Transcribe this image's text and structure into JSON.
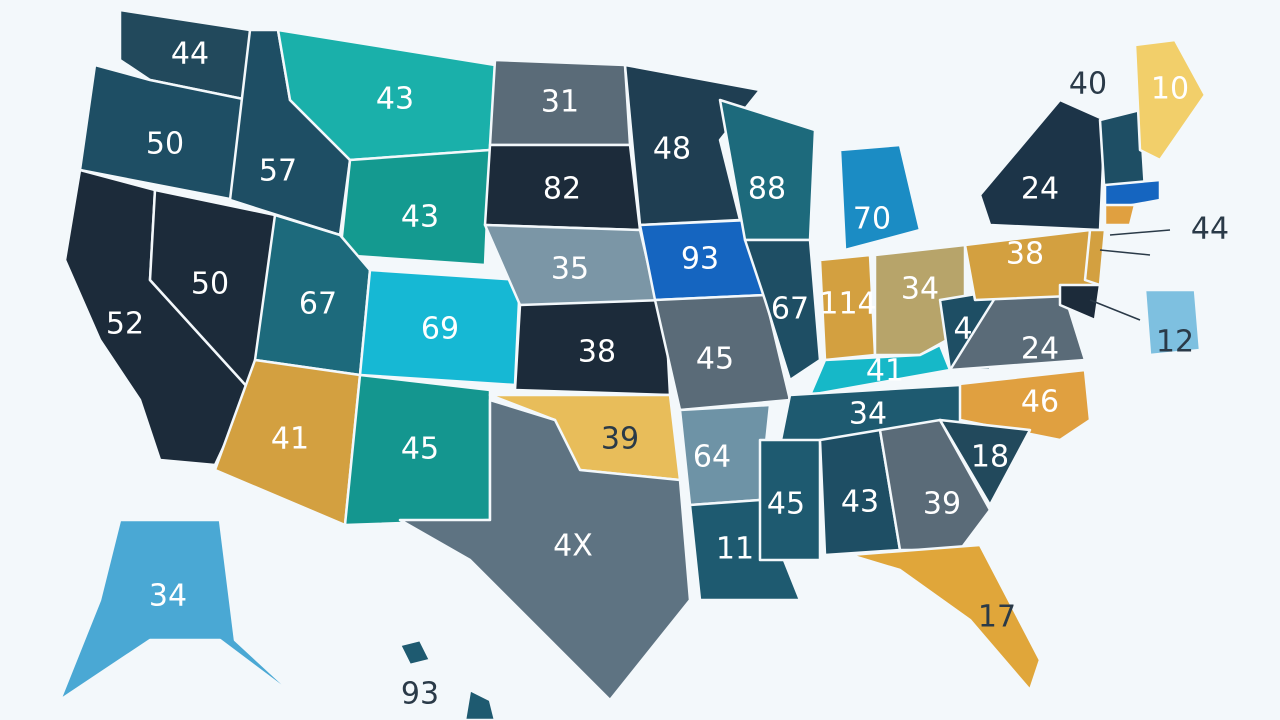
{
  "regions": [
    {
      "label": "44"
    },
    {
      "label": "50"
    },
    {
      "label": "52"
    },
    {
      "label": "50"
    },
    {
      "label": "57"
    },
    {
      "label": "43"
    },
    {
      "label": "43"
    },
    {
      "label": "67"
    },
    {
      "label": "69"
    },
    {
      "label": "41"
    },
    {
      "label": "45"
    },
    {
      "label": "31"
    },
    {
      "label": "82"
    },
    {
      "label": "35"
    },
    {
      "label": "38"
    },
    {
      "label": "39"
    },
    {
      "label": "4X"
    },
    {
      "label": "48"
    },
    {
      "label": "93"
    },
    {
      "label": "45"
    },
    {
      "label": "64"
    },
    {
      "label": "11"
    },
    {
      "label": "88"
    },
    {
      "label": "67"
    },
    {
      "label": "70"
    },
    {
      "label": "114"
    },
    {
      "label": "34"
    },
    {
      "label": "41"
    },
    {
      "label": "4"
    },
    {
      "label": "24"
    },
    {
      "label": "46"
    },
    {
      "label": "34"
    },
    {
      "label": "45"
    },
    {
      "label": "43"
    },
    {
      "label": "39"
    },
    {
      "label": "18"
    },
    {
      "label": "17"
    },
    {
      "label": "38"
    },
    {
      "label": "24"
    },
    {
      "label": "10"
    },
    {
      "label": "40"
    },
    {
      "label": "44"
    },
    {
      "label": "12"
    },
    {
      "label": "34"
    },
    {
      "label": "93"
    }
  ]
}
